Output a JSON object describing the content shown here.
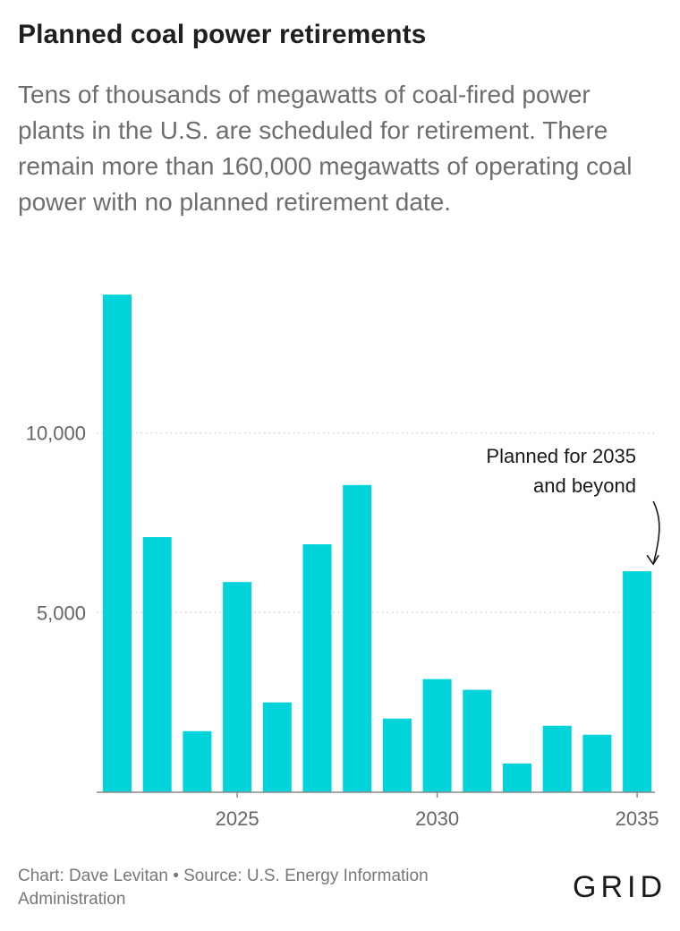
{
  "header": {
    "title": "Planned coal power retirements",
    "subtitle": "Tens of thousands of megawatts of coal-fired power plants in the U.S. are scheduled for retirement. There remain more than 160,000 megawatts of operating coal power with no planned retirement date."
  },
  "footer": {
    "credit": "Chart: Dave Levitan • Source: U.S. Energy Information Administration",
    "logo": "GRID"
  },
  "colors": {
    "bar": "#00d3d9",
    "grid": "#cfcfcf",
    "axis": "#888888"
  },
  "chart_data": {
    "type": "bar",
    "title": "Planned coal power retirements",
    "xlabel": "",
    "ylabel": "",
    "categories": [
      "2022",
      "2023",
      "2024",
      "2025",
      "2026",
      "2027",
      "2028",
      "2029",
      "2030",
      "2031",
      "2032",
      "2033",
      "2034",
      "2035"
    ],
    "values": [
      13850,
      7100,
      1700,
      5850,
      2500,
      6900,
      8550,
      2050,
      3150,
      2850,
      800,
      1850,
      1600,
      6150
    ],
    "ylim": [
      0,
      14500
    ],
    "y_ticks": [
      {
        "value": 5000,
        "label": "5,000"
      },
      {
        "value": 10000,
        "label": "10,000"
      }
    ],
    "x_ticks": [
      {
        "category": "2025",
        "label": "2025"
      },
      {
        "category": "2030",
        "label": "2030"
      },
      {
        "category": "2035",
        "label": "2035"
      }
    ],
    "annotation": {
      "category": "2035",
      "lines": [
        "Planned for 2035",
        "and beyond"
      ]
    },
    "grid": true
  }
}
